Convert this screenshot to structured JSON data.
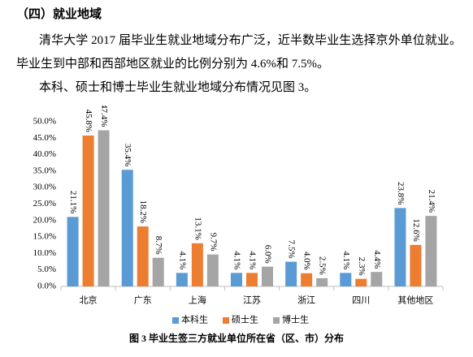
{
  "heading": "（四）就业地域",
  "paragraphs": [
    "清华大学 2017 届毕业生就业地域分布广泛，近半数毕业生选择京外单位就业。毕业生到中部和西部地区就业的比例分别为 4.6%和 7.5%。",
    "本科、硕士和博士毕业生就业地域分布情况见图 3。"
  ],
  "chart_data": {
    "type": "bar",
    "title": "图 3 毕业生签三方就业单位所在省（区、市）分布",
    "categories": [
      "北京",
      "广东",
      "上海",
      "江苏",
      "浙江",
      "四川",
      "其他地区"
    ],
    "series": [
      {
        "name": "本科生",
        "color": "#5b9bd5",
        "values": [
          21.1,
          35.4,
          4.1,
          4.1,
          7.5,
          4.1,
          23.8
        ],
        "value_labels": [
          "21.1%",
          "35.4%",
          "4.1%",
          "4.1%",
          "7.5%",
          "4.1%",
          "23.8%"
        ]
      },
      {
        "name": "硕士生",
        "color": "#ed7d31",
        "values": [
          45.8,
          18.2,
          13.1,
          4.1,
          4.0,
          2.3,
          12.6
        ],
        "value_labels": [
          "45.8%",
          "18.2%",
          "13.1%",
          "4.1%",
          "4.0%",
          "2.3%",
          "12.6%"
        ]
      },
      {
        "name": "博士生",
        "color": "#a5a5a5",
        "values": [
          47.4,
          8.7,
          9.7,
          6.0,
          2.5,
          4.4,
          21.4
        ],
        "value_labels": [
          "47.4%",
          "8.7%",
          "9.7%",
          "6.0%",
          "2.5%",
          "4.4%",
          "21.4%"
        ]
      }
    ],
    "ylim": [
      0,
      50
    ],
    "yticks": [
      {
        "value": 0,
        "label": "0.0%"
      },
      {
        "value": 5,
        "label": "5.0%"
      },
      {
        "value": 10,
        "label": "10.0%"
      },
      {
        "value": 15,
        "label": "15.0%"
      },
      {
        "value": 20,
        "label": "20.0%"
      },
      {
        "value": 25,
        "label": "25.0%"
      },
      {
        "value": 30,
        "label": "30.0%"
      },
      {
        "value": 35,
        "label": "35.0%"
      },
      {
        "value": 40,
        "label": "40.0%"
      },
      {
        "value": 45,
        "label": "45.0%"
      },
      {
        "value": 50,
        "label": "50.0%"
      }
    ],
    "grid": false,
    "legend": "bottom"
  }
}
